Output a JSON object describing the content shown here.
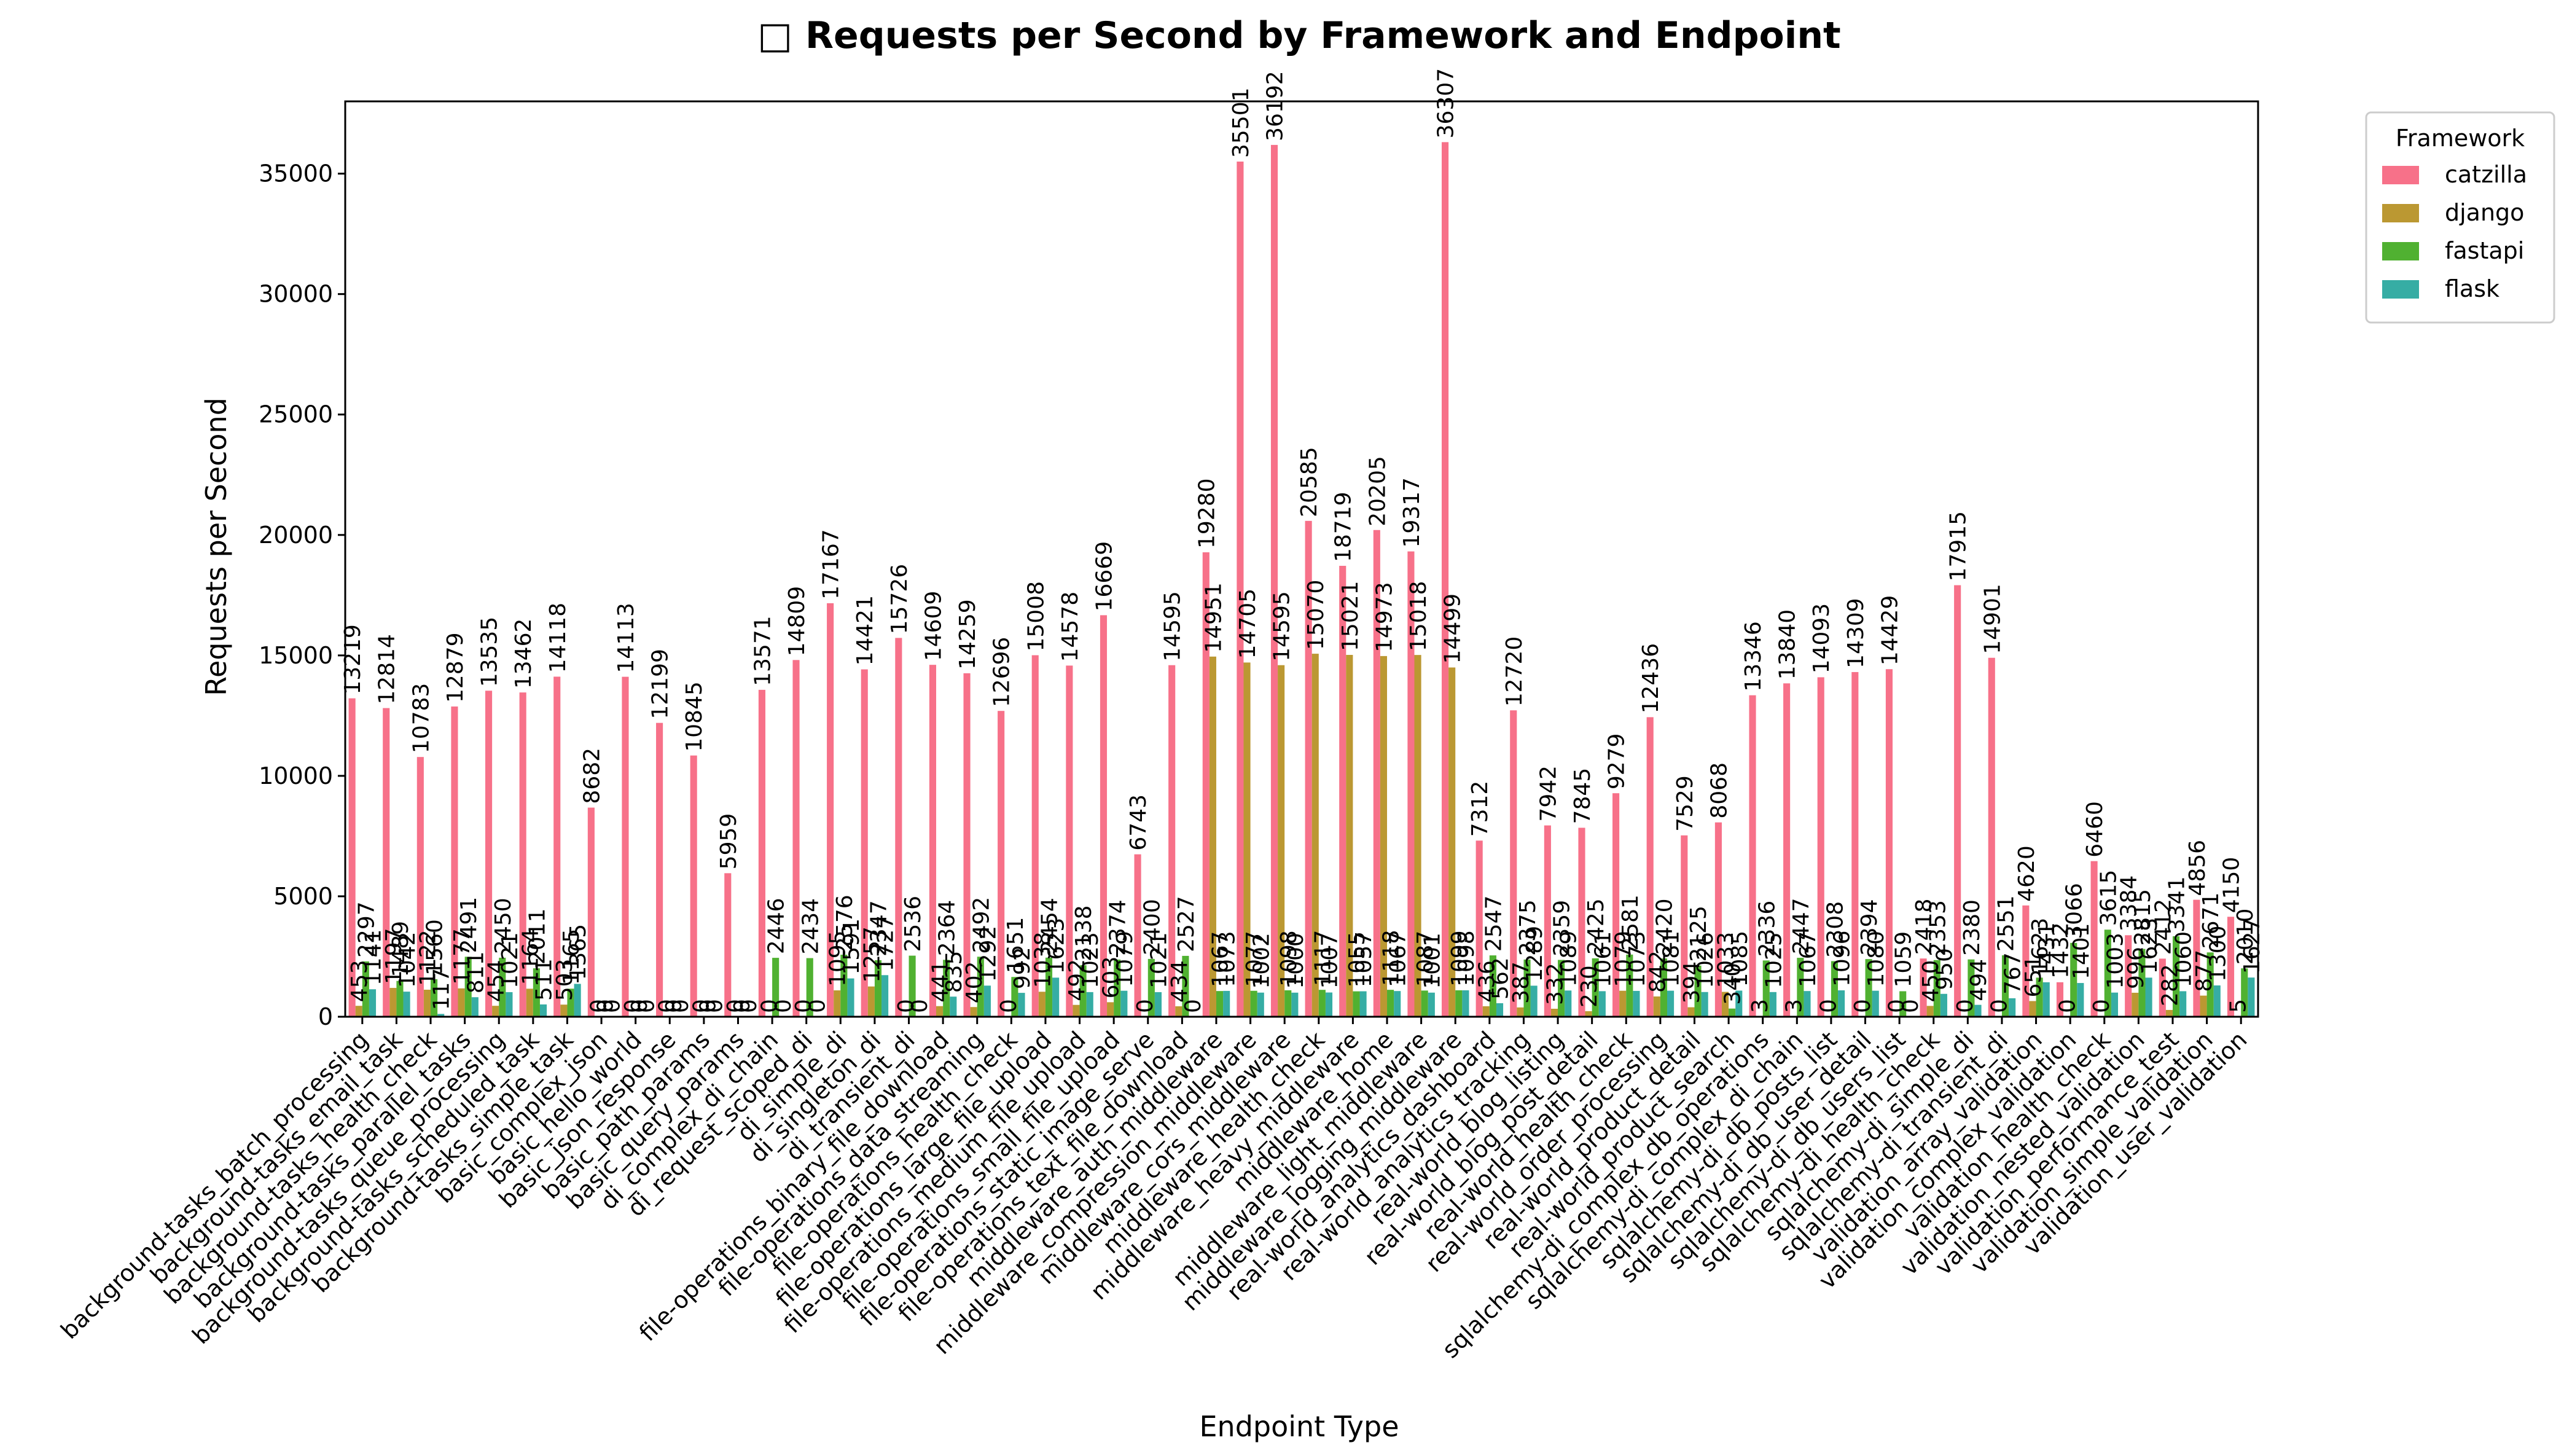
{
  "chart_data": {
    "type": "bar",
    "title": "□ Requests per Second by Framework and Endpoint",
    "xlabel": "Endpoint Type",
    "ylabel": "Requests per Second",
    "ylim": [
      0,
      38000
    ],
    "yticks": [
      0,
      5000,
      10000,
      15000,
      20000,
      25000,
      30000,
      35000
    ],
    "grid": false,
    "legend": {
      "title": "Framework",
      "placement": "outside-top-right"
    },
    "categories": [
      "background-tasks_batch_processing",
      "background-tasks_email_task",
      "background-tasks_health_check",
      "background-tasks_parallel_tasks",
      "background-tasks_queue_processing",
      "background-tasks_scheduled_task",
      "background-tasks_simple_task",
      "basic_complex_json",
      "basic_hello_world",
      "basic_json_response",
      "basic_path_params",
      "basic_query_params",
      "di_complex_di_chain",
      "di_request_scoped_di",
      "di_simple_di",
      "di_singleton_di",
      "di_transient_di",
      "file-operations_binary_file_download",
      "file-operations_data_streaming",
      "file-operations_health_check",
      "file-operations_large_file_upload",
      "file-operations_medium_file_upload",
      "file-operations_small_file_upload",
      "file-operations_static_image_serve",
      "file-operations_text_file_download",
      "middleware_auth_middleware",
      "middleware_compression_middleware",
      "middleware_cors_middleware",
      "middleware_health_check",
      "middleware_heavy_middleware",
      "middleware_home",
      "middleware_light_middleware",
      "middleware_logging_middleware",
      "real-world_analytics_dashboard",
      "real-world_analytics_tracking",
      "real-world_blog_listing",
      "real-world_blog_post_detail",
      "real-world_health_check",
      "real-world_order_processing",
      "real-world_product_detail",
      "real-world_product_search",
      "sqlalchemy-di_complex_db_operations",
      "sqlalchemy-di_complex_di_chain",
      "sqlalchemy-di_db_posts_list",
      "sqlalchemy-di_db_user_detail",
      "sqlalchemy-di_db_users_list",
      "sqlalchemy-di_health_check",
      "sqlalchemy-di_simple_di",
      "sqlalchemy-di_transient_di",
      "validation_array_validation",
      "validation_complex_validation",
      "validation_health_check",
      "validation_nested_validation",
      "validation_performance_test",
      "validation_simple_validation",
      "validation_user_validation"
    ],
    "series": [
      {
        "name": "catzilla",
        "color": "#f77189",
        "values": [
          13219,
          12814,
          10783,
          12879,
          13535,
          13462,
          14118,
          8682,
          14113,
          12199,
          10845,
          5959,
          13571,
          14809,
          17167,
          14421,
          15726,
          14609,
          14259,
          12696,
          15008,
          14578,
          16669,
          6743,
          14595,
          19280,
          35501,
          36192,
          20585,
          18719,
          20205,
          19317,
          36307,
          7312,
          12720,
          7942,
          7845,
          9279,
          12436,
          7529,
          8068,
          13346,
          13840,
          14093,
          14309,
          14429,
          2418,
          17915,
          14901,
          4620,
          1432,
          6460,
          3384,
          2412,
          4856,
          4150
        ]
      },
      {
        "name": "django",
        "color": "#bb9832",
        "values": [
          453,
          1197,
          1122,
          1177,
          454,
          1164,
          503,
          0,
          0,
          0,
          0,
          0,
          0,
          0,
          1095,
          1257,
          0,
          441,
          402,
          0,
          1038,
          492,
          603,
          0,
          434,
          14951,
          14705,
          14595,
          15070,
          15021,
          14973,
          15018,
          14499,
          436,
          387,
          332,
          230,
          1079,
          842,
          394,
          1033,
          3,
          3,
          0,
          0,
          0,
          450,
          0,
          0,
          651,
          0,
          0,
          996,
          282,
          877,
          5
        ]
      },
      {
        "name": "fastapi",
        "color": "#50b131",
        "values": [
          2297,
          1489,
          1560,
          2491,
          2450,
          2011,
          1165,
          0,
          0,
          0,
          0,
          0,
          2446,
          2434,
          2576,
          2347,
          2536,
          2364,
          2492,
          1651,
          2454,
          2138,
          2374,
          2400,
          2527,
          1067,
          1077,
          1098,
          1117,
          1055,
          1118,
          1087,
          1099,
          2547,
          2375,
          2359,
          2425,
          2581,
          2420,
          2125,
          340,
          2336,
          2447,
          2308,
          2394,
          1059,
          2353,
          2380,
          2551,
          1623,
          3066,
          3615,
          2815,
          3341,
          2671,
          2010
        ]
      },
      {
        "name": "flask",
        "color": "#36ada4",
        "values": [
          1141,
          1042,
          117,
          811,
          1021,
          511,
          1365,
          0,
          0,
          0,
          0,
          0,
          0,
          0,
          1591,
          1727,
          0,
          835,
          1292,
          992,
          1623,
          1023,
          1079,
          1021,
          0,
          1073,
          1002,
          1000,
          1007,
          1057,
          1067,
          1001,
          1098,
          562,
          1289,
          1089,
          1061,
          1073,
          1081,
          1026,
          1085,
          1025,
          1067,
          1096,
          1080,
          0,
          950,
          494,
          767,
          1431,
          1401,
          1003,
          1623,
          1060,
          1300,
          1627
        ]
      }
    ]
  }
}
